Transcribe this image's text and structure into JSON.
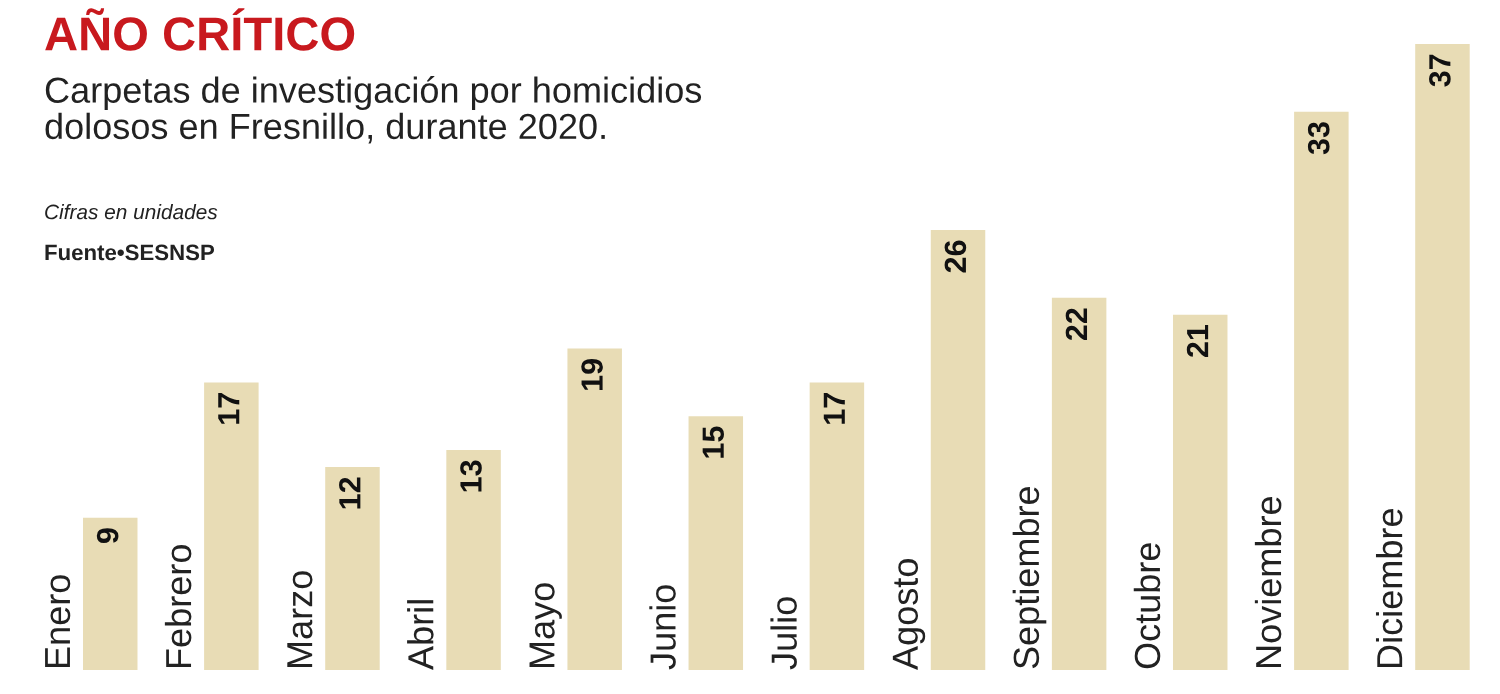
{
  "chart_data": {
    "type": "bar",
    "title": "AÑO CRÍTICO",
    "subtitle": "Carpetas de investigación por homicidios\ndolosos en Fresnillo, durante 2020.",
    "annotations": [
      "Cifras en unidades",
      "Fuente•SESNSP"
    ],
    "categories": [
      "Enero",
      "Febrero",
      "Marzo",
      "Abril",
      "Mayo",
      "Junio",
      "Julio",
      "Agosto",
      "Septiembre",
      "Octubre",
      "Noviembre",
      "Diciembre"
    ],
    "values": [
      9,
      17,
      12,
      13,
      19,
      15,
      17,
      26,
      22,
      21,
      33,
      37
    ],
    "color": "#e8dcb5",
    "data_labels": true
  }
}
